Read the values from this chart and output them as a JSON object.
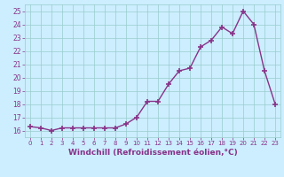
{
  "x": [
    0,
    1,
    2,
    3,
    4,
    5,
    6,
    7,
    8,
    9,
    10,
    11,
    12,
    13,
    14,
    15,
    16,
    17,
    18,
    19,
    20,
    21,
    22,
    23
  ],
  "y": [
    16.3,
    16.2,
    16.0,
    16.2,
    16.2,
    16.2,
    16.2,
    16.2,
    16.2,
    16.5,
    17.0,
    18.2,
    18.2,
    19.5,
    20.5,
    20.7,
    22.3,
    22.8,
    23.8,
    23.3,
    25.0,
    24.0,
    20.5,
    18.0
  ],
  "line_color": "#883388",
  "marker": "+",
  "marker_size": 4,
  "linewidth": 1.0,
  "bg_color": "#cceeff",
  "grid_color": "#99cccc",
  "xlabel": "Windchill (Refroidissement éolien,°C)",
  "xlabel_fontsize": 6.5,
  "tick_label_color": "#883388",
  "xlabel_color": "#883388",
  "ylim": [
    15.5,
    25.5
  ],
  "xlim": [
    -0.5,
    23.5
  ],
  "yticks": [
    16,
    17,
    18,
    19,
    20,
    21,
    22,
    23,
    24,
    25
  ],
  "xticks": [
    0,
    1,
    2,
    3,
    4,
    5,
    6,
    7,
    8,
    9,
    10,
    11,
    12,
    13,
    14,
    15,
    16,
    17,
    18,
    19,
    20,
    21,
    22,
    23
  ]
}
